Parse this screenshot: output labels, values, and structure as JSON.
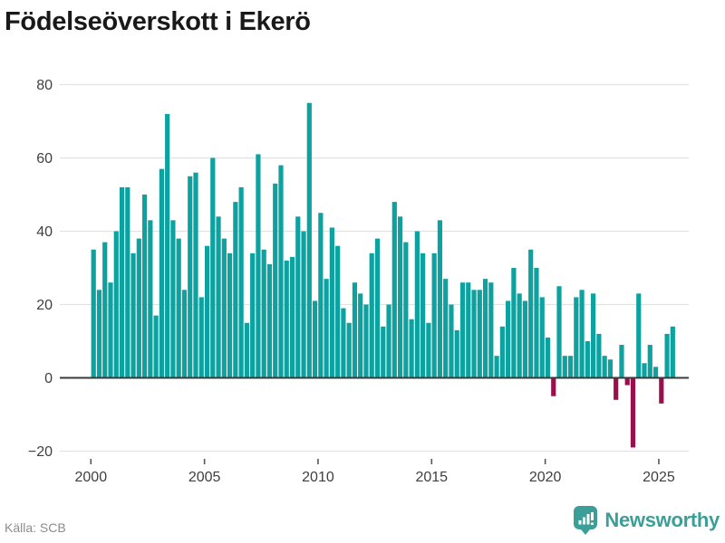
{
  "title": "Födelseöverskott i Ekerö",
  "source": "Källa: SCB",
  "brand": {
    "name": "Newsworthy",
    "icon": "bar-chart-bubble-icon",
    "color": "#3B9E98"
  },
  "colors": {
    "positive": "#0DA2A0",
    "negative": "#9A104D",
    "grid": "#e2e2e2",
    "zero_line": "#3a3a3a",
    "tick": "#555555",
    "axis_text": "#3f3f3f",
    "title_text": "#191919",
    "source_text": "#8c8c8c"
  },
  "chart_data": {
    "type": "bar",
    "title": "Födelseöverskott i Ekerö",
    "xlabel": "",
    "ylabel": "",
    "x_unit": "quarter",
    "start_year": 2000,
    "start_quarter": 1,
    "values": [
      35,
      24,
      37,
      26,
      40,
      52,
      52,
      34,
      38,
      50,
      43,
      17,
      57,
      72,
      43,
      38,
      24,
      55,
      56,
      22,
      36,
      60,
      44,
      38,
      34,
      48,
      52,
      15,
      34,
      61,
      35,
      31,
      53,
      58,
      32,
      33,
      44,
      40,
      75,
      21,
      45,
      27,
      41,
      36,
      19,
      15,
      26,
      23,
      20,
      34,
      38,
      14,
      20,
      48,
      44,
      37,
      16,
      40,
      34,
      15,
      34,
      43,
      27,
      20,
      13,
      26,
      26,
      24,
      24,
      27,
      26,
      6,
      14,
      21,
      30,
      23,
      21,
      35,
      30,
      22,
      11,
      -5,
      25,
      6,
      6,
      22,
      24,
      10,
      23,
      12,
      6,
      5,
      -6,
      9,
      -2,
      -19,
      23,
      4,
      9,
      3,
      -7,
      12,
      14
    ],
    "x_ticks": [
      2000,
      2005,
      2010,
      2015,
      2020,
      2025
    ],
    "y_ticks": [
      -20,
      0,
      20,
      40,
      60,
      80
    ],
    "y_gridlines": [
      -20,
      20,
      40,
      60,
      80
    ],
    "ylim": [
      -25,
      82
    ],
    "grid": true,
    "legend": false
  }
}
